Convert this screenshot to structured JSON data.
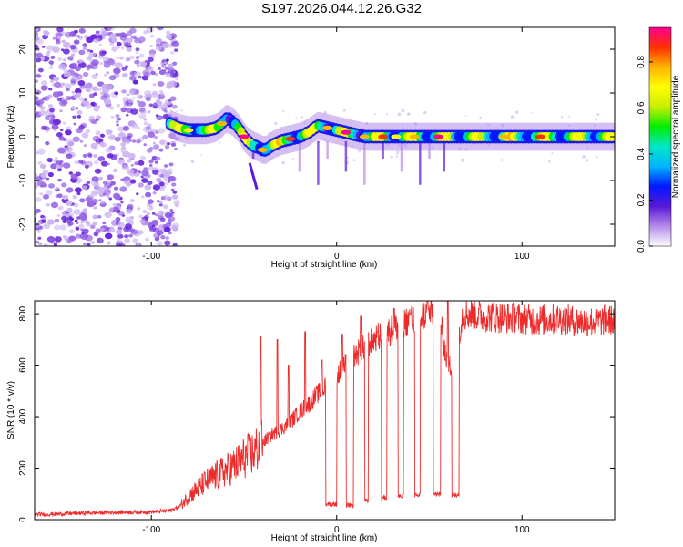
{
  "title": "S197.2026.044.12.26.G32",
  "colors": {
    "snr_line": "#ee2b2b",
    "frame": "#000000",
    "background": "#ffffff"
  },
  "chart_data": [
    {
      "type": "heatmap",
      "xlabel": "Height of straight line (km)",
      "ylabel": "Frequency (Hz)",
      "xlim": [
        -163,
        150
      ],
      "ylim": [
        -25,
        25
      ],
      "xticks": [
        -100,
        0,
        100
      ],
      "yticks": [
        -20,
        -10,
        0,
        10,
        20
      ],
      "colorbar": {
        "label": "Normalized spectral amplitude",
        "range": [
          0,
          0.95
        ],
        "ticks": [
          0.0,
          0.2,
          0.4,
          0.6,
          0.8
        ],
        "colors": [
          "#ffffff",
          "#b58ae8",
          "#5a19d9",
          "#0018ff",
          "#00b4ff",
          "#00e6c8",
          "#00ee00",
          "#c8ee00",
          "#ffff00",
          "#ffb400",
          "#ff3000",
          "#ff0090"
        ]
      },
      "noise_region_x": [
        -163,
        -90
      ],
      "trace": {
        "x": [
          -90,
          -85,
          -80,
          -75,
          -70,
          -65,
          -62,
          -60,
          -58,
          -55,
          -52,
          -50,
          -48,
          -45,
          -42,
          -40,
          -38,
          -35,
          -30,
          -25,
          -20,
          -15,
          -12,
          -10,
          -5,
          0,
          5,
          10,
          15,
          20,
          25,
          30,
          35,
          40,
          45,
          50,
          55,
          60,
          70,
          80,
          90,
          100,
          110,
          120,
          130,
          140,
          150
        ],
        "freq_hz": [
          3,
          2,
          1.5,
          1.5,
          1.5,
          2,
          3,
          4,
          4,
          3,
          1.5,
          0,
          -1,
          -2,
          -2.5,
          -3,
          -3,
          -2,
          -1,
          -0.5,
          0,
          1,
          2,
          2.5,
          2,
          1.5,
          1,
          0.5,
          0,
          0,
          0,
          0,
          0,
          0,
          0,
          0,
          0,
          0,
          0,
          0,
          0,
          0,
          0,
          0,
          0,
          0,
          0
        ]
      }
    },
    {
      "type": "line",
      "xlabel": "Height of straight line (km)",
      "ylabel": "SNR (10 * v/v)",
      "xlim": [
        -163,
        150
      ],
      "ylim": [
        0,
        850
      ],
      "xticks": [
        -100,
        0,
        100
      ],
      "yticks": [
        0,
        200,
        400,
        600,
        800
      ],
      "series": [
        {
          "name": "SNR",
          "x": [
            -163,
            -150,
            -140,
            -120,
            -100,
            -90,
            -85,
            -80,
            -75,
            -70,
            -65,
            -60,
            -55,
            -50,
            -45,
            -40,
            -35,
            -30,
            -25,
            -20,
            -15,
            -10,
            -5,
            0,
            5,
            10,
            15,
            20,
            25,
            30,
            35,
            40,
            45,
            50,
            55,
            60,
            62,
            65,
            68,
            70,
            80,
            90,
            100,
            110,
            120,
            130,
            140,
            150
          ],
          "y": [
            20,
            22,
            25,
            28,
            30,
            35,
            50,
            90,
            120,
            150,
            170,
            190,
            210,
            240,
            260,
            300,
            330,
            350,
            380,
            420,
            450,
            490,
            520,
            560,
            600,
            640,
            670,
            700,
            720,
            740,
            760,
            780,
            790,
            800,
            810,
            590,
            600,
            690,
            800,
            800,
            790,
            785,
            780,
            775,
            780,
            770,
            770,
            775
          ],
          "dropouts": [
            {
              "x": [
                -6,
                0
              ],
              "level": 60
            },
            {
              "x": [
                5,
                9
              ],
              "level": 55
            },
            {
              "x": [
                15,
                17
              ],
              "level": 70
            },
            {
              "x": [
                24,
                27
              ],
              "level": 85
            },
            {
              "x": [
                33,
                36
              ],
              "level": 90
            },
            {
              "x": [
                42,
                45
              ],
              "level": 95
            },
            {
              "x": [
                52,
                56
              ],
              "level": 100
            },
            {
              "x": [
                62,
                66
              ],
              "level": 95
            }
          ],
          "spikes": [
            {
              "x": -41,
              "y": 710
            },
            {
              "x": -32,
              "y": 700
            },
            {
              "x": -26,
              "y": 600
            },
            {
              "x": -17,
              "y": 730
            },
            {
              "x": -8,
              "y": 620
            },
            {
              "x": 3,
              "y": 720
            },
            {
              "x": 13,
              "y": 790
            },
            {
              "x": 22,
              "y": 730
            },
            {
              "x": 31,
              "y": 820
            },
            {
              "x": 40,
              "y": 800
            },
            {
              "x": 49,
              "y": 850
            },
            {
              "x": 60,
              "y": 850
            }
          ]
        }
      ]
    }
  ]
}
